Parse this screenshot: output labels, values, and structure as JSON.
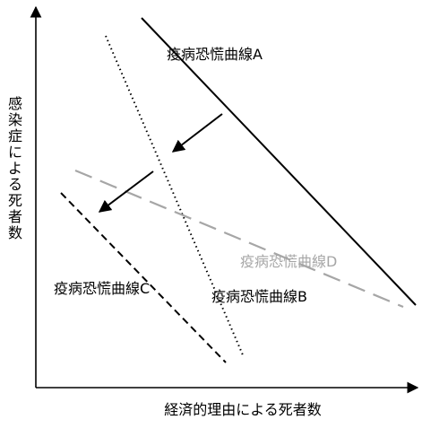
{
  "axes": {
    "x_label": "経済的理由による死者数",
    "y_label": "感染症による死者数"
  },
  "curves": {
    "a": {
      "label": "疫病恐慌曲線A",
      "color": "#000000",
      "style": "solid"
    },
    "b": {
      "label": "疫病恐慌曲線B",
      "color": "#000000",
      "style": "dotted"
    },
    "c": {
      "label": "疫病恐慌曲線C",
      "color": "#000000",
      "style": "dashed"
    },
    "d": {
      "label": "疫病恐慌曲線D",
      "color": "#a6a6a6",
      "style": "long-dashed"
    }
  },
  "colors": {
    "axis": "#000000",
    "gray_curve": "#a6a6a6"
  }
}
